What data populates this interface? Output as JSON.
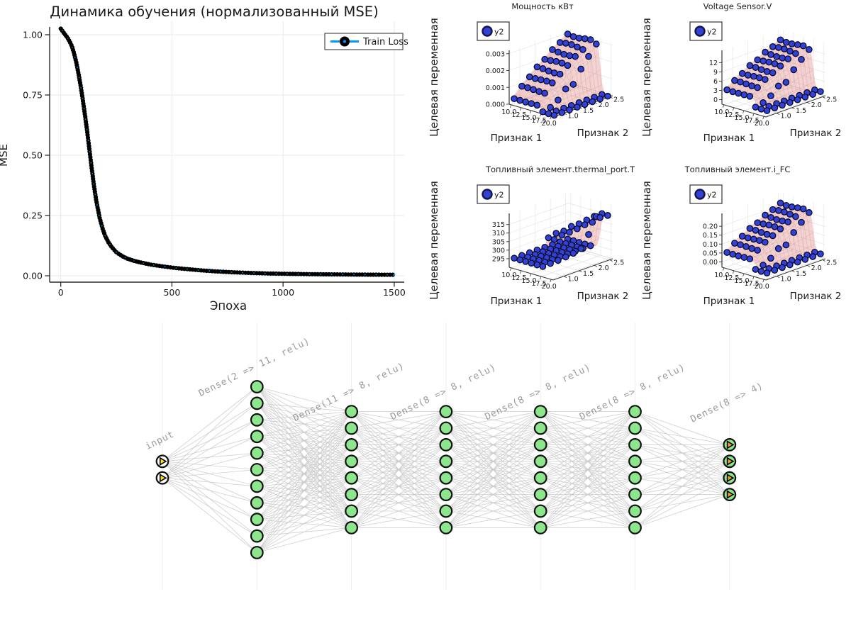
{
  "page": {
    "background": "#ffffff"
  },
  "chart_data": [
    {
      "type": "line",
      "title": "Динамика обучения (нормализованный MSE)",
      "xlabel": "Эпоха",
      "ylabel": "MSE",
      "series": [
        {
          "name": "Train Loss"
        }
      ],
      "legend_position": "top-right",
      "line_color": "#009AFA",
      "marker_color": "#000000",
      "xtick_labels": [
        "0",
        "500",
        "1000",
        "1500"
      ],
      "xtick_values": [
        0,
        500,
        1000,
        1500
      ],
      "ytick_labels": [
        "0.00",
        "0.25",
        "0.50",
        "0.75",
        "1.00"
      ],
      "ytick_values": [
        0,
        0.25,
        0.5,
        0.75,
        1.0
      ],
      "xlim": [
        -50,
        1545
      ],
      "x": [
        0,
        10,
        20,
        30,
        40,
        50,
        60,
        70,
        80,
        90,
        100,
        110,
        120,
        130,
        140,
        150,
        160,
        175,
        190,
        200,
        215,
        230,
        250,
        275,
        300,
        325,
        350,
        400,
        450,
        500,
        550,
        600,
        650,
        700,
        750,
        800,
        850,
        900,
        950,
        1000,
        1100,
        1200,
        1300,
        1400,
        1500
      ],
      "y": [
        1.025,
        1.012,
        1.0,
        0.988,
        0.972,
        0.952,
        0.922,
        0.885,
        0.838,
        0.785,
        0.725,
        0.66,
        0.59,
        0.515,
        0.44,
        0.37,
        0.31,
        0.24,
        0.19,
        0.165,
        0.138,
        0.118,
        0.098,
        0.082,
        0.071,
        0.063,
        0.057,
        0.047,
        0.04,
        0.034,
        0.029,
        0.025,
        0.021,
        0.018,
        0.0155,
        0.0135,
        0.0118,
        0.0103,
        0.0091,
        0.0082,
        0.0068,
        0.0058,
        0.005,
        0.0044,
        0.004
      ]
    },
    {
      "type": "scatter3d",
      "title": "Мощность кВт",
      "legend": "y2",
      "xlabel": "Признак 1",
      "ylabel": "Признак 2",
      "zlabel": "Целевая переменная",
      "xtick_labels": [
        "10.0",
        "12.5",
        "15.0",
        "17.5",
        "20.0"
      ],
      "xtick_values": [
        10,
        12.5,
        15,
        17.5,
        20
      ],
      "ytick_labels": [
        "1.0",
        "1.5",
        "2.0",
        "2.5"
      ],
      "ytick_values": [
        1.0,
        1.5,
        2.0,
        2.5
      ],
      "ztick_labels": [
        "0.000",
        "0.001",
        "0.002",
        "0.003"
      ],
      "ztick_values": [
        0,
        0.001,
        0.002,
        0.003
      ],
      "zlim": [
        0,
        0.0032
      ],
      "x_values": [
        10,
        11.43,
        12.86,
        14.29,
        15.71,
        17.14,
        18.57,
        20
      ],
      "y_values": [
        0.75,
        1.0,
        1.25,
        1.5,
        1.75,
        2.0,
        2.25,
        2.5
      ],
      "flat": 0,
      "cliff_x": 17.8,
      "flipped": false,
      "profile": {
        "base": 0.0003,
        "amp": 0.0027,
        "pow": 0.8
      },
      "colors": {
        "point": "#3142d6",
        "surface": "#d76969"
      }
    },
    {
      "type": "scatter3d",
      "title": "Voltage Sensor.V",
      "legend": "y2",
      "xlabel": "Признак 1",
      "ylabel": "Признак 2",
      "zlabel": "Целевая переменная",
      "xtick_labels": [
        "10.0",
        "12.5",
        "15.0",
        "17.5",
        "20.0"
      ],
      "xtick_values": [
        10,
        12.5,
        15,
        17.5,
        20
      ],
      "ytick_labels": [
        "1.0",
        "1.5",
        "2.0",
        "2.5"
      ],
      "ytick_values": [
        1.0,
        1.5,
        2.0,
        2.5
      ],
      "ztick_labels": [
        "0",
        "3",
        "6",
        "9",
        "12"
      ],
      "ztick_values": [
        0,
        3,
        6,
        9,
        12
      ],
      "zlim": [
        -1.5,
        16
      ],
      "x_values": [
        10,
        11.43,
        12.86,
        14.29,
        15.71,
        17.14,
        18.57,
        20
      ],
      "y_values": [
        0.75,
        1.0,
        1.25,
        1.5,
        1.75,
        2.0,
        2.25,
        2.5
      ],
      "flat": 0,
      "cliff_x": 17.8,
      "flipped": false,
      "profile": {
        "base": 3,
        "amp": 10,
        "pow": 0.8
      },
      "colors": {
        "point": "#3142d6",
        "surface": "#d76969"
      }
    },
    {
      "type": "scatter3d",
      "title": "Топливный элемент.thermal_port.T",
      "legend": "y2",
      "xlabel": "Признак 1",
      "ylabel": "Признак 2",
      "zlabel": "Целевая переменная",
      "xtick_labels": [
        "10.0",
        "12.5",
        "15.0",
        "17.5",
        "20.0"
      ],
      "xtick_values": [
        10,
        12.5,
        15,
        17.5,
        20
      ],
      "ytick_labels": [
        "1.0",
        "1.5",
        "2.0",
        "2.5"
      ],
      "ytick_values": [
        1.0,
        1.5,
        2.0,
        2.5
      ],
      "ztick_labels": [
        "295",
        "300",
        "305",
        "310",
        "315"
      ],
      "ztick_values": [
        295,
        300,
        305,
        310,
        315
      ],
      "zlim": [
        290,
        321.5
      ],
      "x_values": [
        10,
        11.43,
        12.86,
        14.29,
        15.71,
        17.14,
        18.57,
        20
      ],
      "y_values": [
        0.75,
        1.0,
        1.25,
        1.5,
        1.75,
        2.0,
        2.25,
        2.5
      ],
      "flat": 295,
      "cliff_x": 17.8,
      "flipped": true,
      "profile": {
        "base": 313,
        "amp": 3,
        "pow": 1
      },
      "colors": {
        "point": "#3142d6",
        "surface": "#d76969"
      }
    },
    {
      "type": "scatter3d",
      "title": "Топливный элемент.i_FC",
      "legend": "y2",
      "xlabel": "Признак 1",
      "ylabel": "Признак 2",
      "zlabel": "Целевая переменная",
      "xtick_labels": [
        "10.0",
        "12.5",
        "15.0",
        "17.5",
        "20.0"
      ],
      "xtick_values": [
        10,
        12.5,
        15,
        17.5,
        20
      ],
      "ytick_labels": [
        "1.0",
        "1.5",
        "2.0",
        "2.5"
      ],
      "ytick_values": [
        1.0,
        1.5,
        2.0,
        2.5
      ],
      "ztick_labels": [
        "0.00",
        "0.05",
        "0.10",
        "0.15",
        "0.20"
      ],
      "ztick_values": [
        0,
        0.05,
        0.1,
        0.15,
        0.2
      ],
      "zlim": [
        -0.03,
        0.272
      ],
      "x_values": [
        10,
        11.43,
        12.86,
        14.29,
        15.71,
        17.14,
        18.57,
        20
      ],
      "y_values": [
        0.75,
        1.0,
        1.25,
        1.5,
        1.75,
        2.0,
        2.25,
        2.5
      ],
      "flat": 0,
      "cliff_x": 17.8,
      "flipped": false,
      "profile": {
        "base": 0.05,
        "amp": 0.17,
        "pow": 0.8
      },
      "colors": {
        "point": "#3142d6",
        "surface": "#d76969"
      }
    },
    {
      "type": "network-diagram",
      "layers": [
        {
          "label": "input",
          "nodes": 2,
          "style": "input"
        },
        {
          "label": "Dense(2 => 11, relu)",
          "nodes": 11,
          "style": "hidden"
        },
        {
          "label": "Dense(11 => 8, relu)",
          "nodes": 8,
          "style": "hidden"
        },
        {
          "label": "Dense(8 => 8, relu)",
          "nodes": 8,
          "style": "hidden"
        },
        {
          "label": "Dense(8 => 8, relu)",
          "nodes": 8,
          "style": "hidden"
        },
        {
          "label": "Dense(8 => 8, relu)",
          "nodes": 8,
          "style": "hidden"
        },
        {
          "label": "Dense(8 => 4)",
          "nodes": 4,
          "style": "output"
        }
      ],
      "colors": {
        "hidden_fill": "#8CE78C",
        "input_fill": "#ffffff",
        "input_arrow": "#FFE014",
        "output_fill": "#8CE78C",
        "output_arrow": "#F59E1B",
        "edge": "#c6c6c6",
        "label": "#9a9a9a",
        "node_stroke": "#111111",
        "gridline": "#ededed"
      }
    }
  ]
}
